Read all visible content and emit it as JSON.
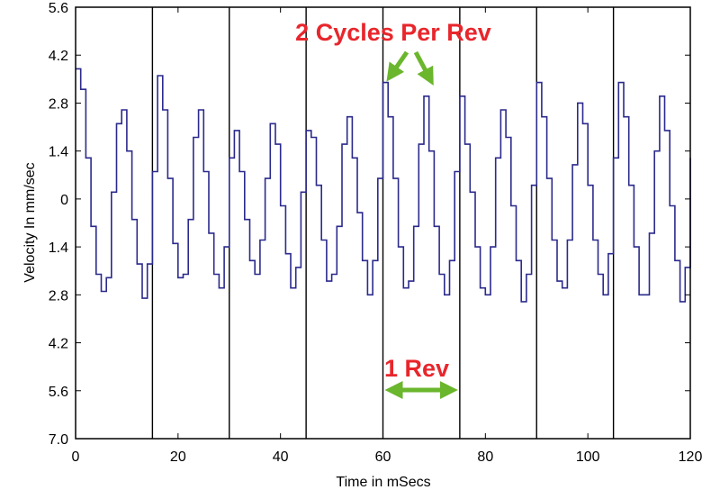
{
  "chart_data": {
    "type": "line",
    "title": "",
    "xlabel": "Time in mSecs",
    "ylabel": "Velocity In mm/sec",
    "xlim": [
      0,
      120
    ],
    "ylim": [
      -7.0,
      5.6
    ],
    "x_ticks": [
      0,
      20,
      40,
      60,
      80,
      100,
      120
    ],
    "y_ticks": [
      {
        "value": 5.6,
        "label": "5.6"
      },
      {
        "value": 4.2,
        "label": "4.2"
      },
      {
        "value": 2.8,
        "label": "2.8"
      },
      {
        "value": 1.4,
        "label": "1.4"
      },
      {
        "value": 0,
        "label": "0"
      },
      {
        "value": -1.4,
        "label": "1.4"
      },
      {
        "value": -2.8,
        "label": "2.8"
      },
      {
        "value": -4.2,
        "label": "4.2"
      },
      {
        "value": -5.6,
        "label": "5.6"
      },
      {
        "value": -7.0,
        "label": "7.0"
      }
    ],
    "revolution_markers_ms": [
      15,
      30,
      45,
      60,
      75,
      90,
      105
    ],
    "grid": false,
    "series": [
      {
        "color": "#2b2a8c",
        "x": [
          0,
          1,
          2,
          3,
          4,
          5,
          6,
          7,
          8,
          9,
          10,
          11,
          12,
          13,
          14,
          15,
          16,
          17,
          18,
          19,
          20,
          21,
          22,
          23,
          24,
          25,
          26,
          27,
          28,
          29,
          30,
          31,
          32,
          33,
          34,
          35,
          36,
          37,
          38,
          39,
          40,
          41,
          42,
          43,
          44,
          45,
          46,
          47,
          48,
          49,
          50,
          51,
          52,
          53,
          54,
          55,
          56,
          57,
          58,
          59,
          60,
          61,
          62,
          63,
          64,
          65,
          66,
          67,
          68,
          69,
          70,
          71,
          72,
          73,
          74,
          75,
          76,
          77,
          78,
          79,
          80,
          81,
          82,
          83,
          84,
          85,
          86,
          87,
          88,
          89,
          90,
          91,
          92,
          93,
          94,
          95,
          96,
          97,
          98,
          99,
          100,
          101,
          102,
          103,
          104,
          105,
          106,
          107,
          108,
          109,
          110,
          111,
          112,
          113,
          114,
          115,
          116,
          117,
          118,
          119,
          120
        ],
        "y": [
          3.8,
          3.2,
          1.2,
          -0.8,
          -2.2,
          -2.7,
          -2.3,
          0.2,
          2.2,
          2.6,
          1.4,
          -0.6,
          -1.9,
          -2.9,
          -1.9,
          0.8,
          3.6,
          2.6,
          0.6,
          -1.3,
          -2.3,
          -2.2,
          -0.6,
          1.8,
          2.6,
          0.8,
          -1.0,
          -2.2,
          -2.6,
          -1.4,
          1.2,
          2.0,
          0.8,
          -0.6,
          -1.8,
          -2.2,
          -1.2,
          0.6,
          2.2,
          1.6,
          -0.2,
          -1.6,
          -2.6,
          -2.0,
          0.2,
          2.0,
          1.8,
          0.4,
          -1.2,
          -2.4,
          -2.2,
          -0.8,
          1.6,
          2.4,
          1.2,
          -0.4,
          -1.8,
          -2.8,
          -1.8,
          0.6,
          3.4,
          2.4,
          0.6,
          -1.4,
          -2.6,
          -2.4,
          -0.8,
          1.6,
          3.0,
          1.4,
          -0.8,
          -2.2,
          -2.8,
          -1.8,
          0.8,
          3.0,
          1.6,
          0.2,
          -1.4,
          -2.6,
          -2.8,
          -1.4,
          1.2,
          2.6,
          1.8,
          -0.2,
          -1.8,
          -3.0,
          -2.2,
          0.4,
          3.4,
          2.4,
          0.6,
          -1.2,
          -2.4,
          -2.6,
          -1.2,
          1.0,
          2.8,
          2.2,
          0.4,
          -1.2,
          -2.2,
          -2.8,
          -1.6,
          1.2,
          3.4,
          2.4,
          0.4,
          -1.4,
          -2.8,
          -2.8,
          -1.0,
          1.4,
          3.0,
          2.0,
          -0.2,
          -1.8,
          -3.0,
          -2.0,
          1.2
        ]
      }
    ],
    "annotations": [
      {
        "text": "2 Cycles Per Rev",
        "color": "#e8262c"
      },
      {
        "text": "1 Rev",
        "color": "#e8262c"
      }
    ],
    "arrow_color": "#6ab62c"
  }
}
